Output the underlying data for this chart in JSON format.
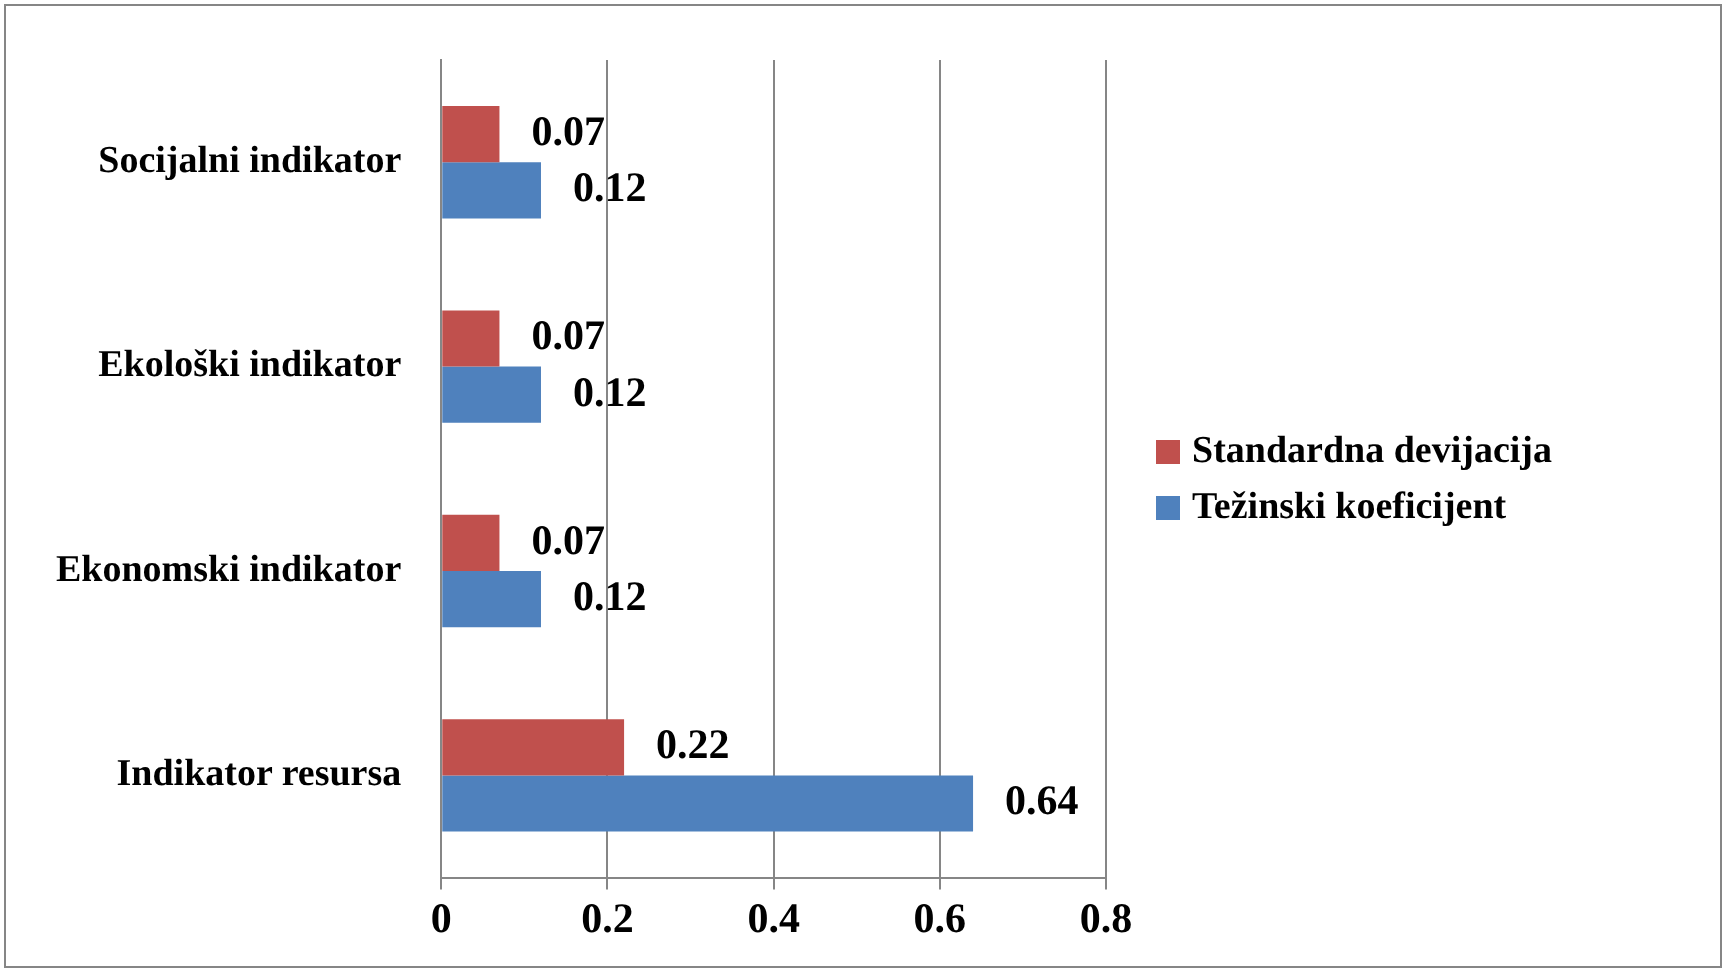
{
  "chart_data": {
    "type": "bar",
    "orientation": "horizontal",
    "categories": [
      "Socijalni indikator",
      "Ekološki indikator",
      "Ekonomski indikator",
      "Indikator resursa"
    ],
    "series": [
      {
        "name": "Standardna devijacija",
        "color": "#c0504d",
        "values": [
          0.07,
          0.07,
          0.07,
          0.22
        ]
      },
      {
        "name": "Težinski koeficijent",
        "color": "#4f81bd",
        "values": [
          0.12,
          0.12,
          0.12,
          0.64
        ]
      }
    ],
    "xlim": [
      0,
      0.8
    ],
    "xticks": [
      0,
      0.2,
      0.4,
      0.6,
      0.8
    ],
    "grid": "x",
    "legend": "right",
    "data_labels": true
  }
}
